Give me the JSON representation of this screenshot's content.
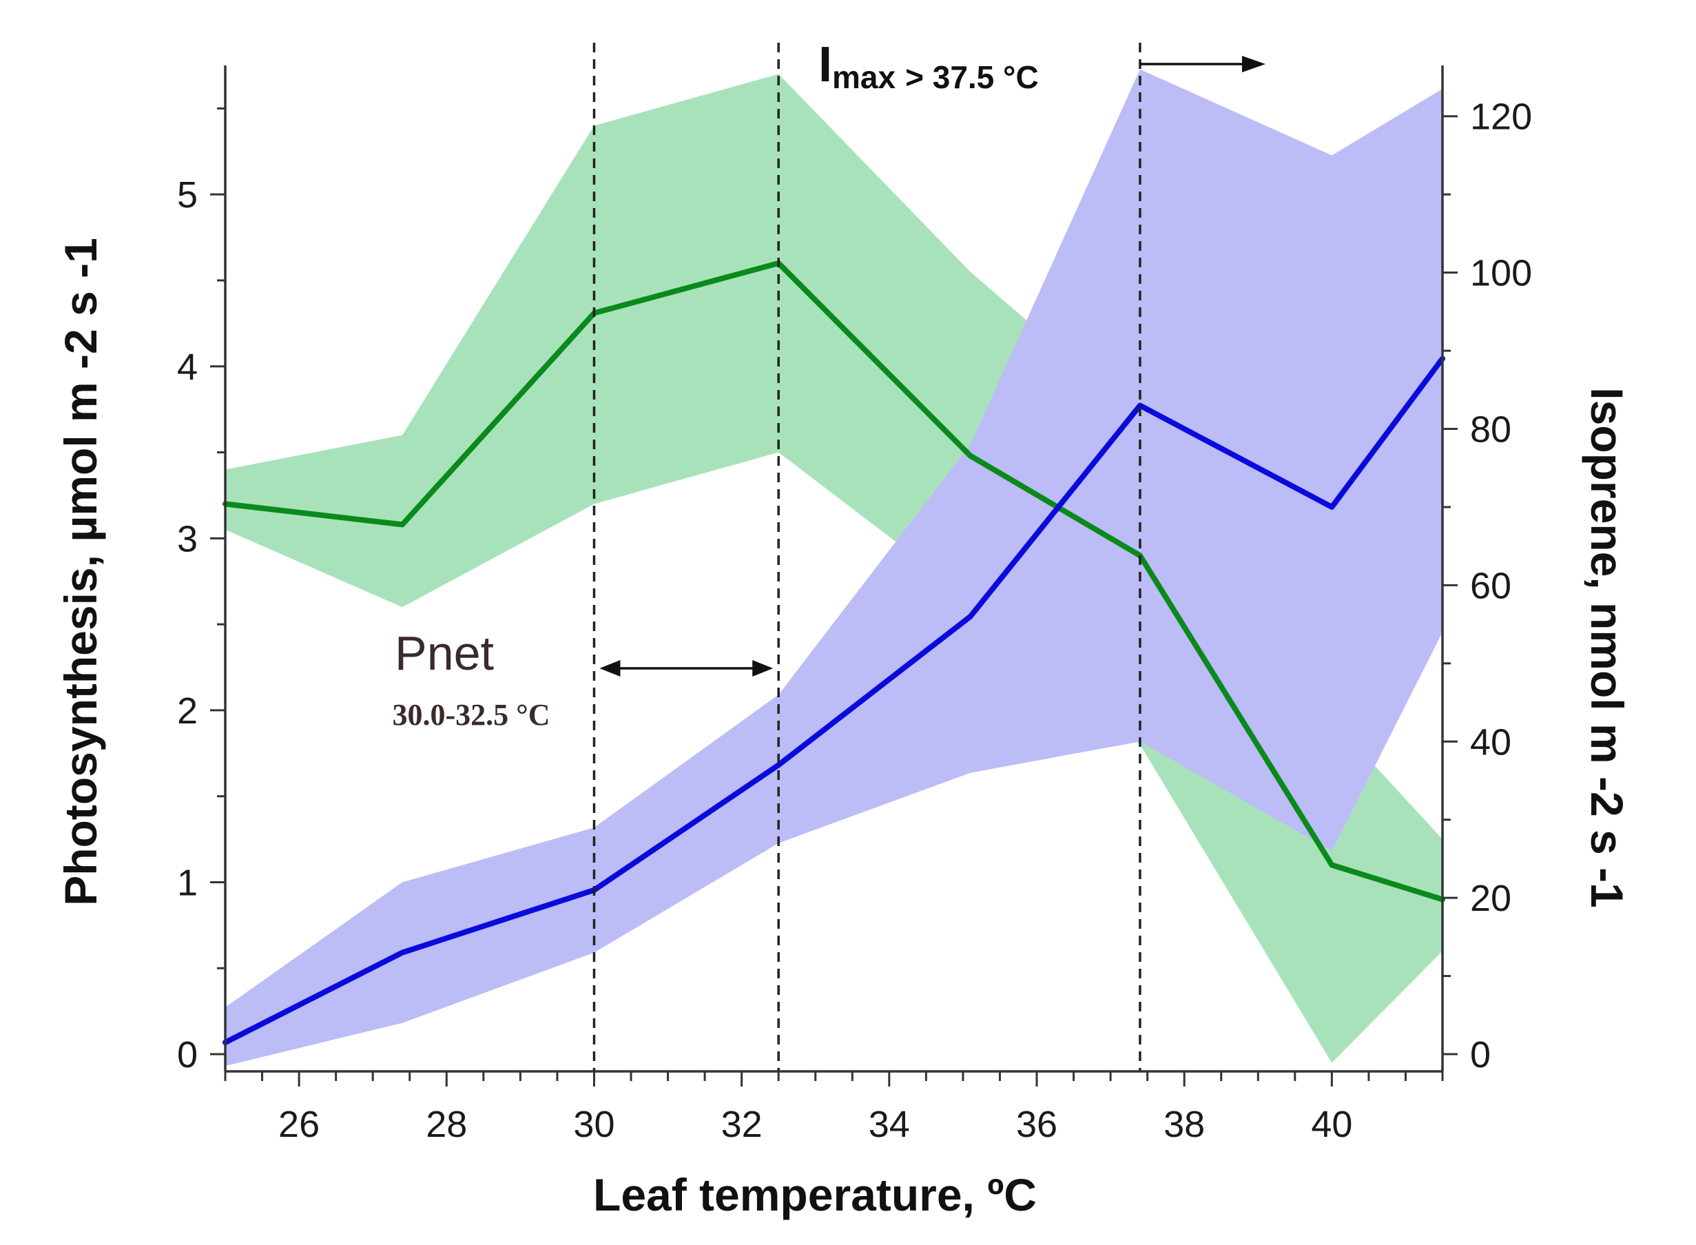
{
  "chart_data": {
    "type": "line",
    "title": "",
    "xlabel": "Leaf temperature, ºC",
    "x": [
      25,
      27.4,
      30,
      32.5,
      35.1,
      37.4,
      40,
      41.5
    ],
    "xlim": [
      25,
      41.5
    ],
    "xticks": [
      26,
      28,
      30,
      32,
      34,
      36,
      38,
      40
    ],
    "left_axis": {
      "label": "Photosynthesis, µmol m -2 s -1",
      "ylim": [
        -0.1,
        5.75
      ],
      "ticks": [
        0,
        1,
        2,
        3,
        4,
        5
      ]
    },
    "right_axis": {
      "label": "Isoprene, nmol m -2 s -1",
      "ylim": [
        -2.2,
        126.5
      ],
      "ticks": [
        0,
        20,
        40,
        60,
        80,
        100,
        120
      ]
    },
    "series": [
      {
        "name": "Photosynthesis",
        "axis": "left",
        "color": "#0a8a1a",
        "band_color": "#a8e2bb",
        "values": [
          3.2,
          3.08,
          4.31,
          4.6,
          3.48,
          2.9,
          1.1,
          0.9
        ],
        "band_low": [
          3.05,
          2.6,
          3.2,
          3.5,
          2.65,
          1.8,
          -0.05,
          0.6
        ],
        "band_high": [
          3.4,
          3.6,
          5.4,
          5.7,
          4.55,
          3.7,
          1.95,
          1.25
        ]
      },
      {
        "name": "Isoprene",
        "axis": "right",
        "color": "#0a0adc",
        "band_color": "#bcbcf6",
        "values": [
          1.5,
          13,
          21,
          37,
          56,
          83,
          70,
          89
        ],
        "band_low": [
          -1.5,
          4,
          13,
          27,
          36,
          40,
          26,
          54
        ],
        "band_high": [
          6,
          22,
          29,
          46,
          78,
          126,
          115,
          123.5
        ]
      }
    ],
    "vlines_x": [
      30,
      32.5,
      37.4
    ],
    "annotations": {
      "pnet_label": "Pnet",
      "pnet_range": "30.0-32.5 °C",
      "pnet_range_x": [
        30,
        32.5
      ],
      "imax_symbol": "I",
      "imax_sub": "max",
      "imax_rest": "> 37.5  °C",
      "imax_arrow_x": [
        37.4,
        39.1
      ]
    },
    "legend": "none",
    "grid": false
  }
}
